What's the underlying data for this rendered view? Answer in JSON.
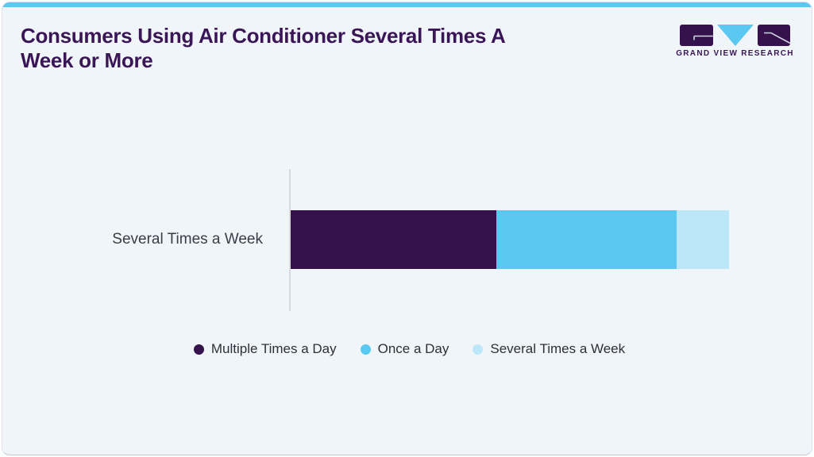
{
  "header": {
    "title": "Consumers Using Air Conditioner Several Times A Week or More",
    "logo_text": "GRAND VIEW RESEARCH"
  },
  "colors": {
    "accent_strip": "#5bc8f2",
    "card_bg": "#f0f5fa",
    "title": "#3a1656",
    "axis": "#d6d8da",
    "segment_purple": "#35124b",
    "segment_blue": "#5bc8f2",
    "segment_pale_blue": "#bce7f8"
  },
  "chart_data": {
    "type": "bar",
    "orientation": "horizontal",
    "stacked": true,
    "categories": [
      "Several Times a Week"
    ],
    "series": [
      {
        "name": "Multiple Times a Day",
        "values": [
          47
        ],
        "color": "#35124b"
      },
      {
        "name": "Once a Day",
        "values": [
          41
        ],
        "color": "#5bc8f2"
      },
      {
        "name": "Several Times a Week",
        "values": [
          12
        ],
        "color": "#bce7f8"
      }
    ],
    "xlim": [
      0,
      100
    ],
    "grid": false,
    "legend_position": "bottom",
    "title": "Consumers Using Air Conditioner Several Times A Week or More"
  },
  "legend": {
    "items": [
      {
        "label": "Multiple Times a Day",
        "color": "#35124b"
      },
      {
        "label": "Once a Day",
        "color": "#5bc8f2"
      },
      {
        "label": "Several Times a Week",
        "color": "#bce7f8"
      }
    ]
  }
}
